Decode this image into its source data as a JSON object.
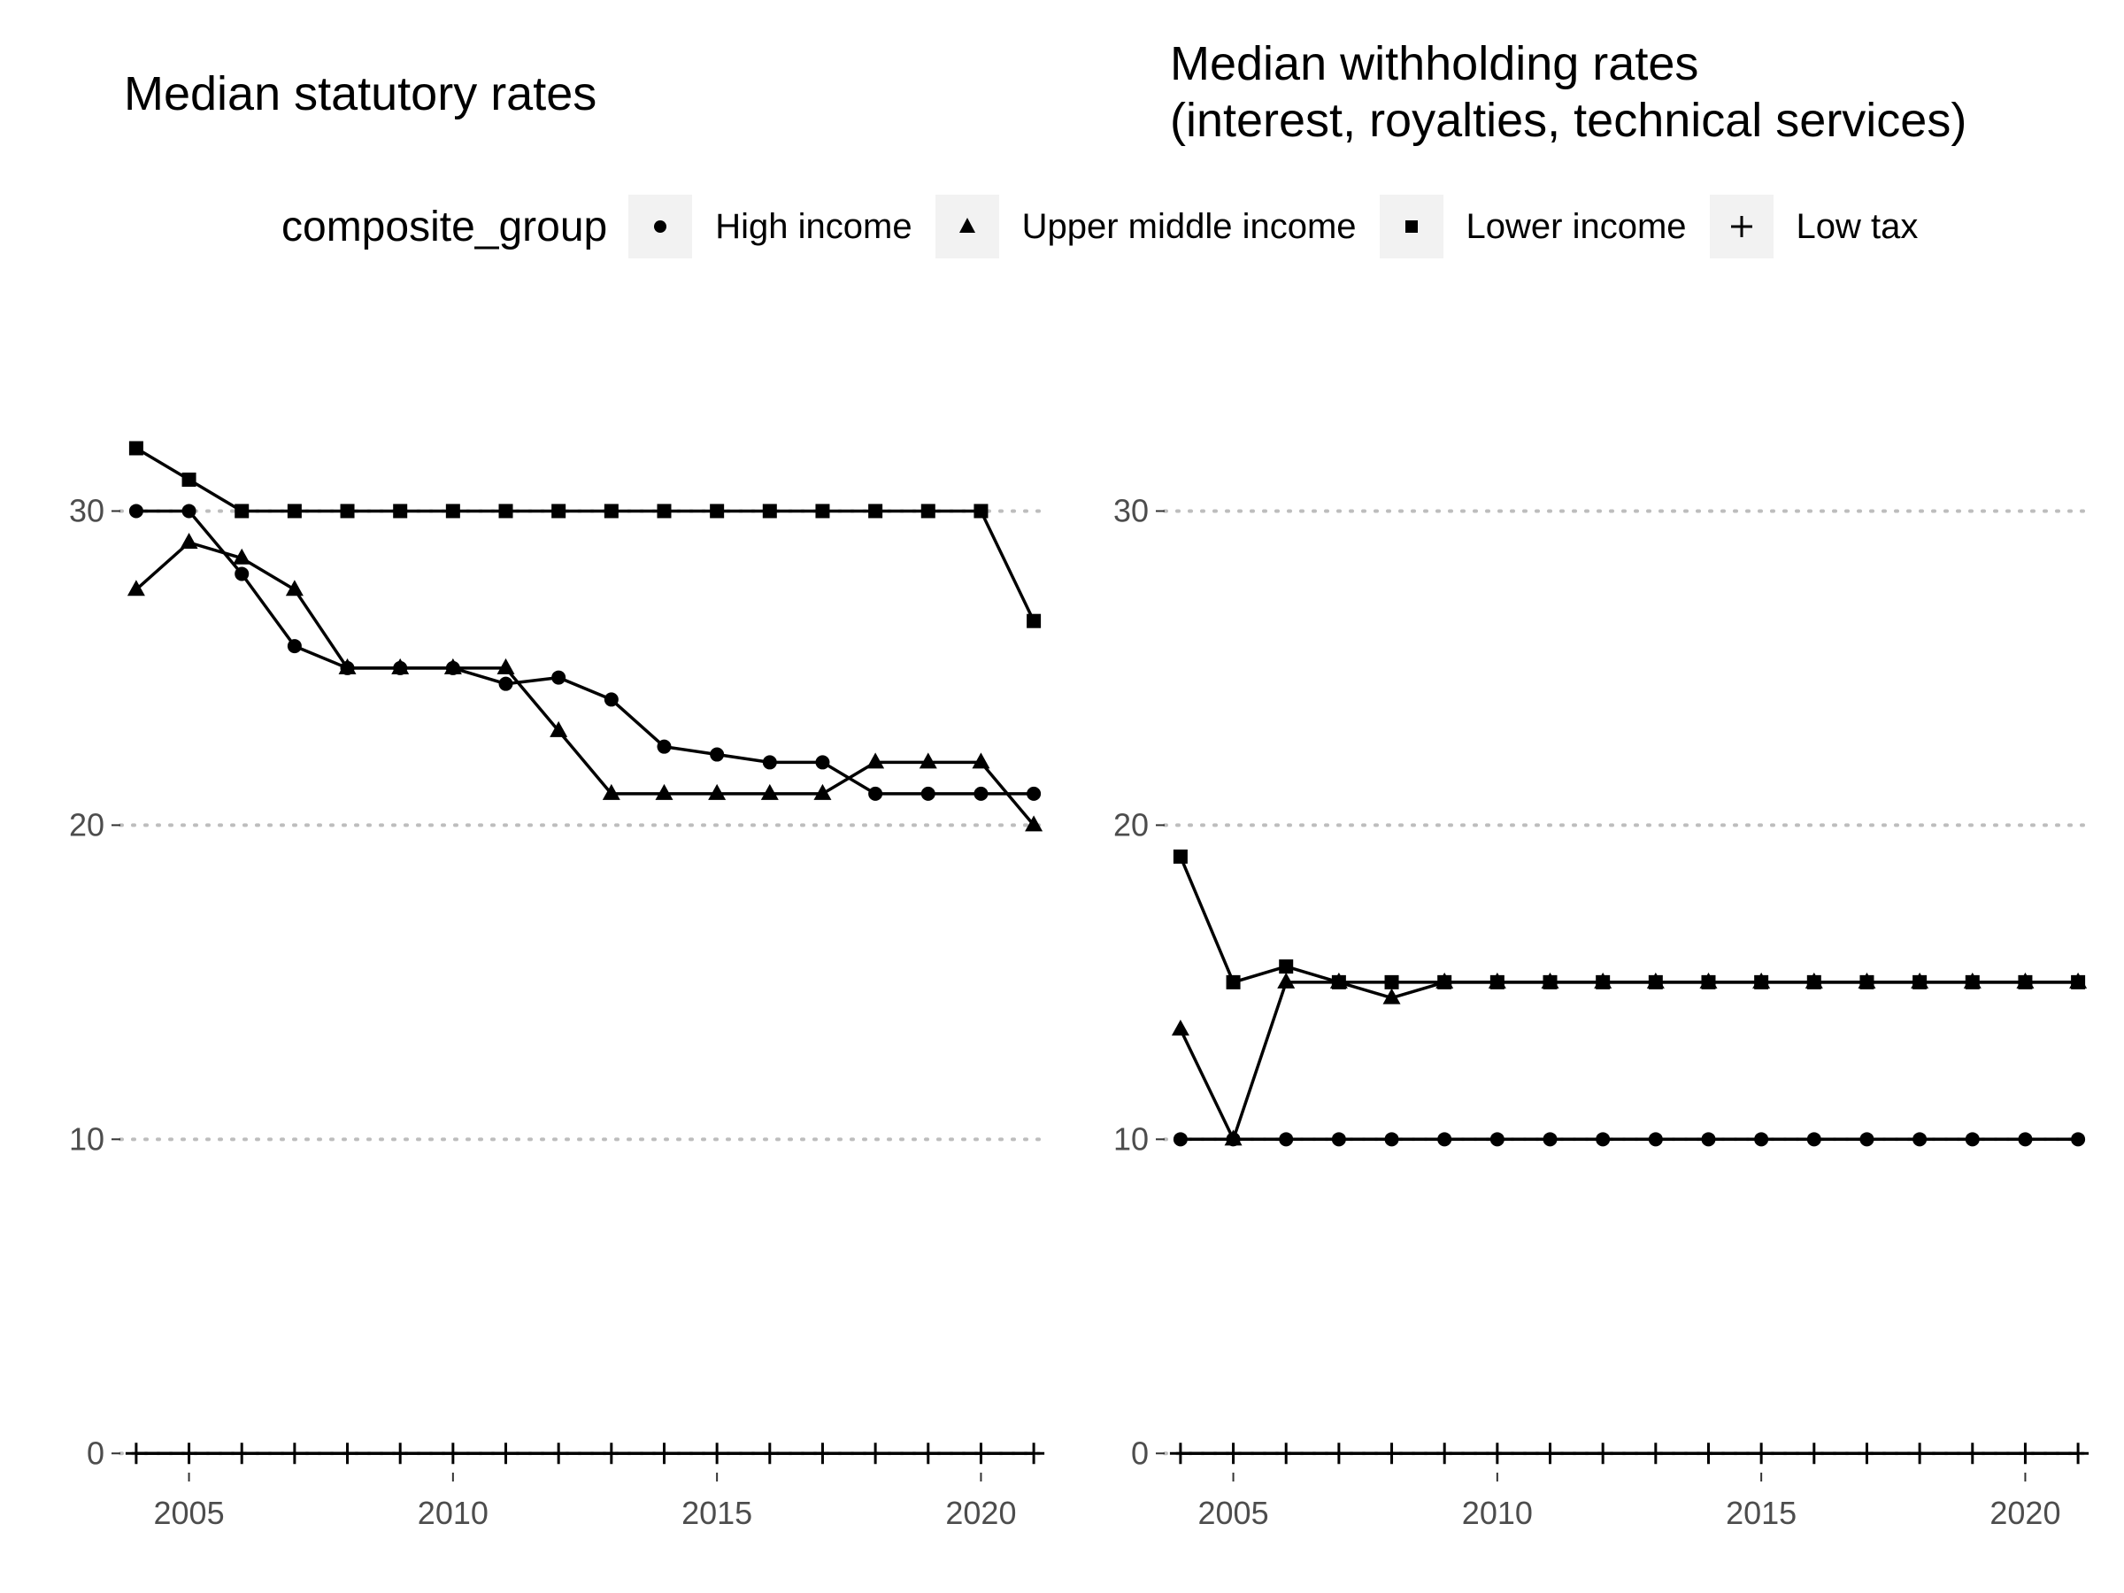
{
  "legend": {
    "title": "composite_group",
    "items": [
      {
        "label": "High income",
        "shape": "circle"
      },
      {
        "label": "Upper middle income",
        "shape": "triangle"
      },
      {
        "label": "Lower income",
        "shape": "square"
      },
      {
        "label": "Low tax",
        "shape": "plus"
      }
    ]
  },
  "chart_data": [
    {
      "type": "line",
      "title": "Median statutory rates",
      "xlabel": "",
      "ylabel": "",
      "xlim": [
        2003.7,
        2021.3
      ],
      "ylim": [
        -0.5,
        35
      ],
      "x_ticks": [
        2005,
        2010,
        2015,
        2020
      ],
      "y_ticks": [
        0,
        10,
        20,
        30
      ],
      "grid": "horizontal dotted",
      "legend_position": "top",
      "x": [
        2004,
        2005,
        2006,
        2007,
        2008,
        2009,
        2010,
        2011,
        2012,
        2013,
        2014,
        2015,
        2016,
        2017,
        2018,
        2019,
        2020,
        2021
      ],
      "series": [
        {
          "name": "High income",
          "shape": "circle",
          "values": [
            30,
            30,
            28,
            25.7,
            25,
            25,
            25,
            24.5,
            24.7,
            24,
            22.5,
            22.25,
            22,
            22,
            21,
            21,
            21,
            21
          ]
        },
        {
          "name": "Upper middle income",
          "shape": "triangle",
          "values": [
            27.5,
            29,
            28.5,
            27.5,
            25,
            25,
            25,
            25,
            23,
            21,
            21,
            21,
            21,
            21,
            22,
            22,
            22,
            20
          ]
        },
        {
          "name": "Lower income",
          "shape": "square",
          "values": [
            32,
            31,
            30,
            30,
            30,
            30,
            30,
            30,
            30,
            30,
            30,
            30,
            30,
            30,
            30,
            30,
            30,
            26.5
          ]
        },
        {
          "name": "Low tax",
          "shape": "plus",
          "values": [
            0,
            0,
            0,
            0,
            0,
            0,
            0,
            0,
            0,
            0,
            0,
            0,
            0,
            0,
            0,
            0,
            0,
            0
          ]
        }
      ]
    },
    {
      "type": "line",
      "title": "Median withholding rates\n(interest, royalties, technical services)",
      "xlabel": "",
      "ylabel": "",
      "xlim": [
        2003.7,
        2021.3
      ],
      "ylim": [
        -0.5,
        35
      ],
      "x_ticks": [
        2005,
        2010,
        2015,
        2020
      ],
      "y_ticks": [
        0,
        10,
        20,
        30
      ],
      "grid": "horizontal dotted",
      "legend_position": "top",
      "x": [
        2004,
        2005,
        2006,
        2007,
        2008,
        2009,
        2010,
        2011,
        2012,
        2013,
        2014,
        2015,
        2016,
        2017,
        2018,
        2019,
        2020,
        2021
      ],
      "series": [
        {
          "name": "High income",
          "shape": "circle",
          "values": [
            10,
            10,
            10,
            10,
            10,
            10,
            10,
            10,
            10,
            10,
            10,
            10,
            10,
            10,
            10,
            10,
            10,
            10
          ]
        },
        {
          "name": "Upper middle income",
          "shape": "triangle",
          "values": [
            13.5,
            10,
            15,
            15,
            14.5,
            15,
            15,
            15,
            15,
            15,
            15,
            15,
            15,
            15,
            15,
            15,
            15,
            15
          ]
        },
        {
          "name": "Lower income",
          "shape": "square",
          "values": [
            19,
            15,
            15.5,
            15,
            15,
            15,
            15,
            15,
            15,
            15,
            15,
            15,
            15,
            15,
            15,
            15,
            15,
            15
          ]
        },
        {
          "name": "Low tax",
          "shape": "plus",
          "values": [
            0,
            0,
            0,
            0,
            0,
            0,
            0,
            0,
            0,
            0,
            0,
            0,
            0,
            0,
            0,
            0,
            0,
            0
          ]
        }
      ]
    }
  ]
}
